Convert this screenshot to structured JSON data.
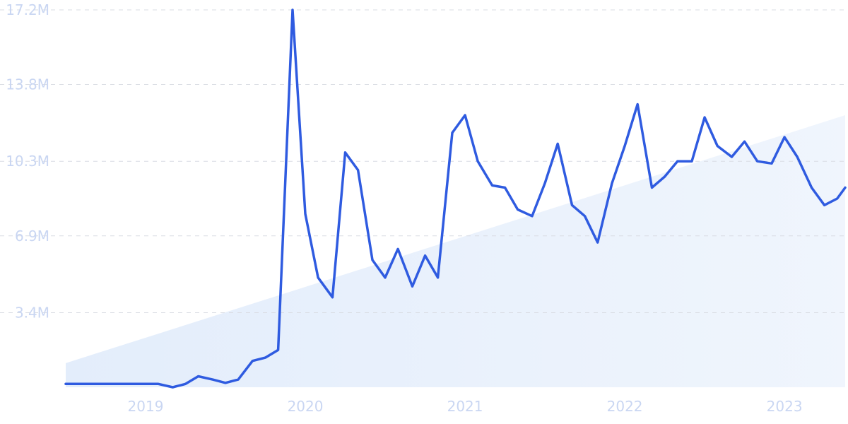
{
  "chart_data": {
    "type": "line",
    "title": "",
    "xlabel": "",
    "ylabel": "",
    "y_ticks": [
      3.4,
      6.9,
      10.3,
      13.8,
      17.2
    ],
    "y_tick_labels": [
      "3.4M",
      "6.9M",
      "10.3M",
      "13.8M",
      "17.2M"
    ],
    "ylim": [
      0,
      17.2
    ],
    "x_ticks": [
      2019,
      2020,
      2021,
      2022,
      2023
    ],
    "x_tick_labels": [
      "2019",
      "2020",
      "2021",
      "2022",
      "2023"
    ],
    "xlim": [
      2018.5,
      2023.38
    ],
    "grid": "horizontal-dashed",
    "series": [
      {
        "line_color": "#2f5be0",
        "x": [
          2018.5,
          2018.58,
          2018.67,
          2018.75,
          2018.83,
          2018.92,
          2019.0,
          2019.08,
          2019.17,
          2019.25,
          2019.33,
          2019.42,
          2019.5,
          2019.58,
          2019.67,
          2019.75,
          2019.83,
          2019.92,
          2020.0,
          2020.08,
          2020.17,
          2020.25,
          2020.33,
          2020.42,
          2020.5,
          2020.58,
          2020.67,
          2020.75,
          2020.83,
          2020.92,
          2021.0,
          2021.08,
          2021.17,
          2021.25,
          2021.33,
          2021.42,
          2021.5,
          2021.58,
          2021.67,
          2021.75,
          2021.83,
          2021.92,
          2022.0,
          2022.08,
          2022.17,
          2022.25,
          2022.33,
          2022.42,
          2022.5,
          2022.58,
          2022.67,
          2022.75,
          2022.83,
          2022.92,
          2023.0,
          2023.08,
          2023.17,
          2023.25,
          2023.33,
          2023.38
        ],
        "y": [
          0.15,
          0.15,
          0.15,
          0.15,
          0.15,
          0.15,
          0.15,
          0.15,
          0.0,
          0.15,
          0.5,
          0.35,
          0.2,
          0.35,
          1.2,
          1.35,
          1.7,
          17.2,
          7.9,
          5.0,
          4.1,
          10.7,
          9.9,
          5.8,
          5.0,
          6.3,
          4.6,
          6.0,
          5.0,
          11.6,
          12.4,
          10.3,
          9.2,
          9.1,
          8.1,
          7.8,
          9.3,
          11.1,
          8.3,
          7.8,
          6.6,
          9.3,
          11.0,
          12.9,
          9.1,
          9.6,
          10.3,
          10.3,
          12.3,
          11.0,
          10.5,
          11.2,
          10.3,
          10.2,
          11.4,
          10.5,
          9.1,
          8.3,
          8.6,
          9.1
        ]
      }
    ],
    "trend_area": {
      "color": "#e3edfb",
      "x_start": 2018.5,
      "y_start": 1.1,
      "x_end": 2023.38,
      "y_end": 12.4
    },
    "axis_label_color": "#c9d6f2",
    "grid_color": "#d9dce3"
  }
}
